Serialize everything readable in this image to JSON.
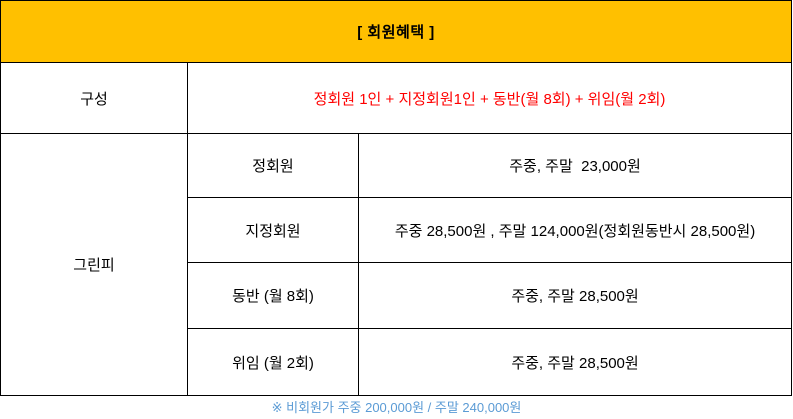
{
  "title": "[ 회원혜택 ]",
  "colors": {
    "header_bg": "#FFC000",
    "red_text": "#FF0000",
    "footnote_blue": "#5B9BD5",
    "border": "#000000"
  },
  "table": {
    "composition": {
      "label": "구성",
      "value": "정회원 1인 + 지정회원1인 + 동반(월 8회) + 위임(월 2회)"
    },
    "green_fee": {
      "label": "그린피",
      "rows": [
        {
          "type": "정회원",
          "price": "주중, 주말  23,000원"
        },
        {
          "type": "지정회원",
          "price": "주중 28,500원 , 주말 124,000원(정회원동반시 28,500원)"
        },
        {
          "type": "동반 (월 8회)",
          "price": "주중, 주말 28,500원"
        },
        {
          "type": "위임 (월 2회)",
          "price": "주중, 주말 28,500원"
        }
      ]
    }
  },
  "footnote": "※ 비회원가 주중 200,000원 / 주말 240,000원"
}
